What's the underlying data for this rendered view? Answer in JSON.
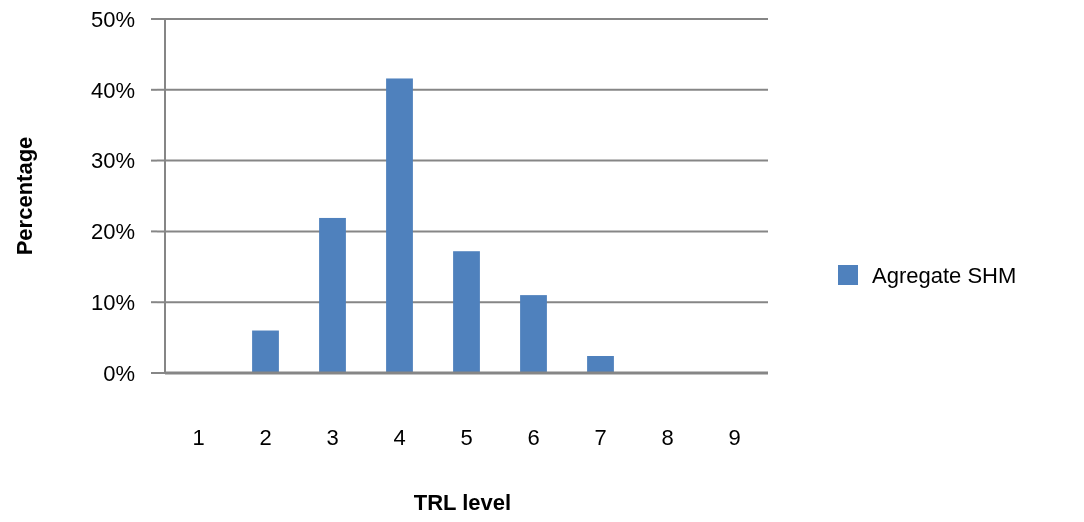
{
  "chart_data": {
    "type": "bar",
    "xlabel": "TRL level",
    "ylabel": "Percentage",
    "categories": [
      "1",
      "2",
      "3",
      "4",
      "5",
      "6",
      "7",
      "8",
      "9"
    ],
    "series": [
      {
        "name": "Agregate SHM",
        "color": "#4f81bd",
        "values": [
          0,
          6,
          21.9,
          41.6,
          17.2,
          11,
          2.4,
          0,
          0
        ]
      }
    ],
    "ylim": [
      0,
      50
    ],
    "yticks": [
      {
        "value": 0,
        "label": "0%"
      },
      {
        "value": 10,
        "label": "10%"
      },
      {
        "value": 20,
        "label": "20%"
      },
      {
        "value": 30,
        "label": "30%"
      },
      {
        "value": 40,
        "label": "40%"
      },
      {
        "value": 50,
        "label": "50%"
      }
    ],
    "grid": "y",
    "legend": "right"
  }
}
